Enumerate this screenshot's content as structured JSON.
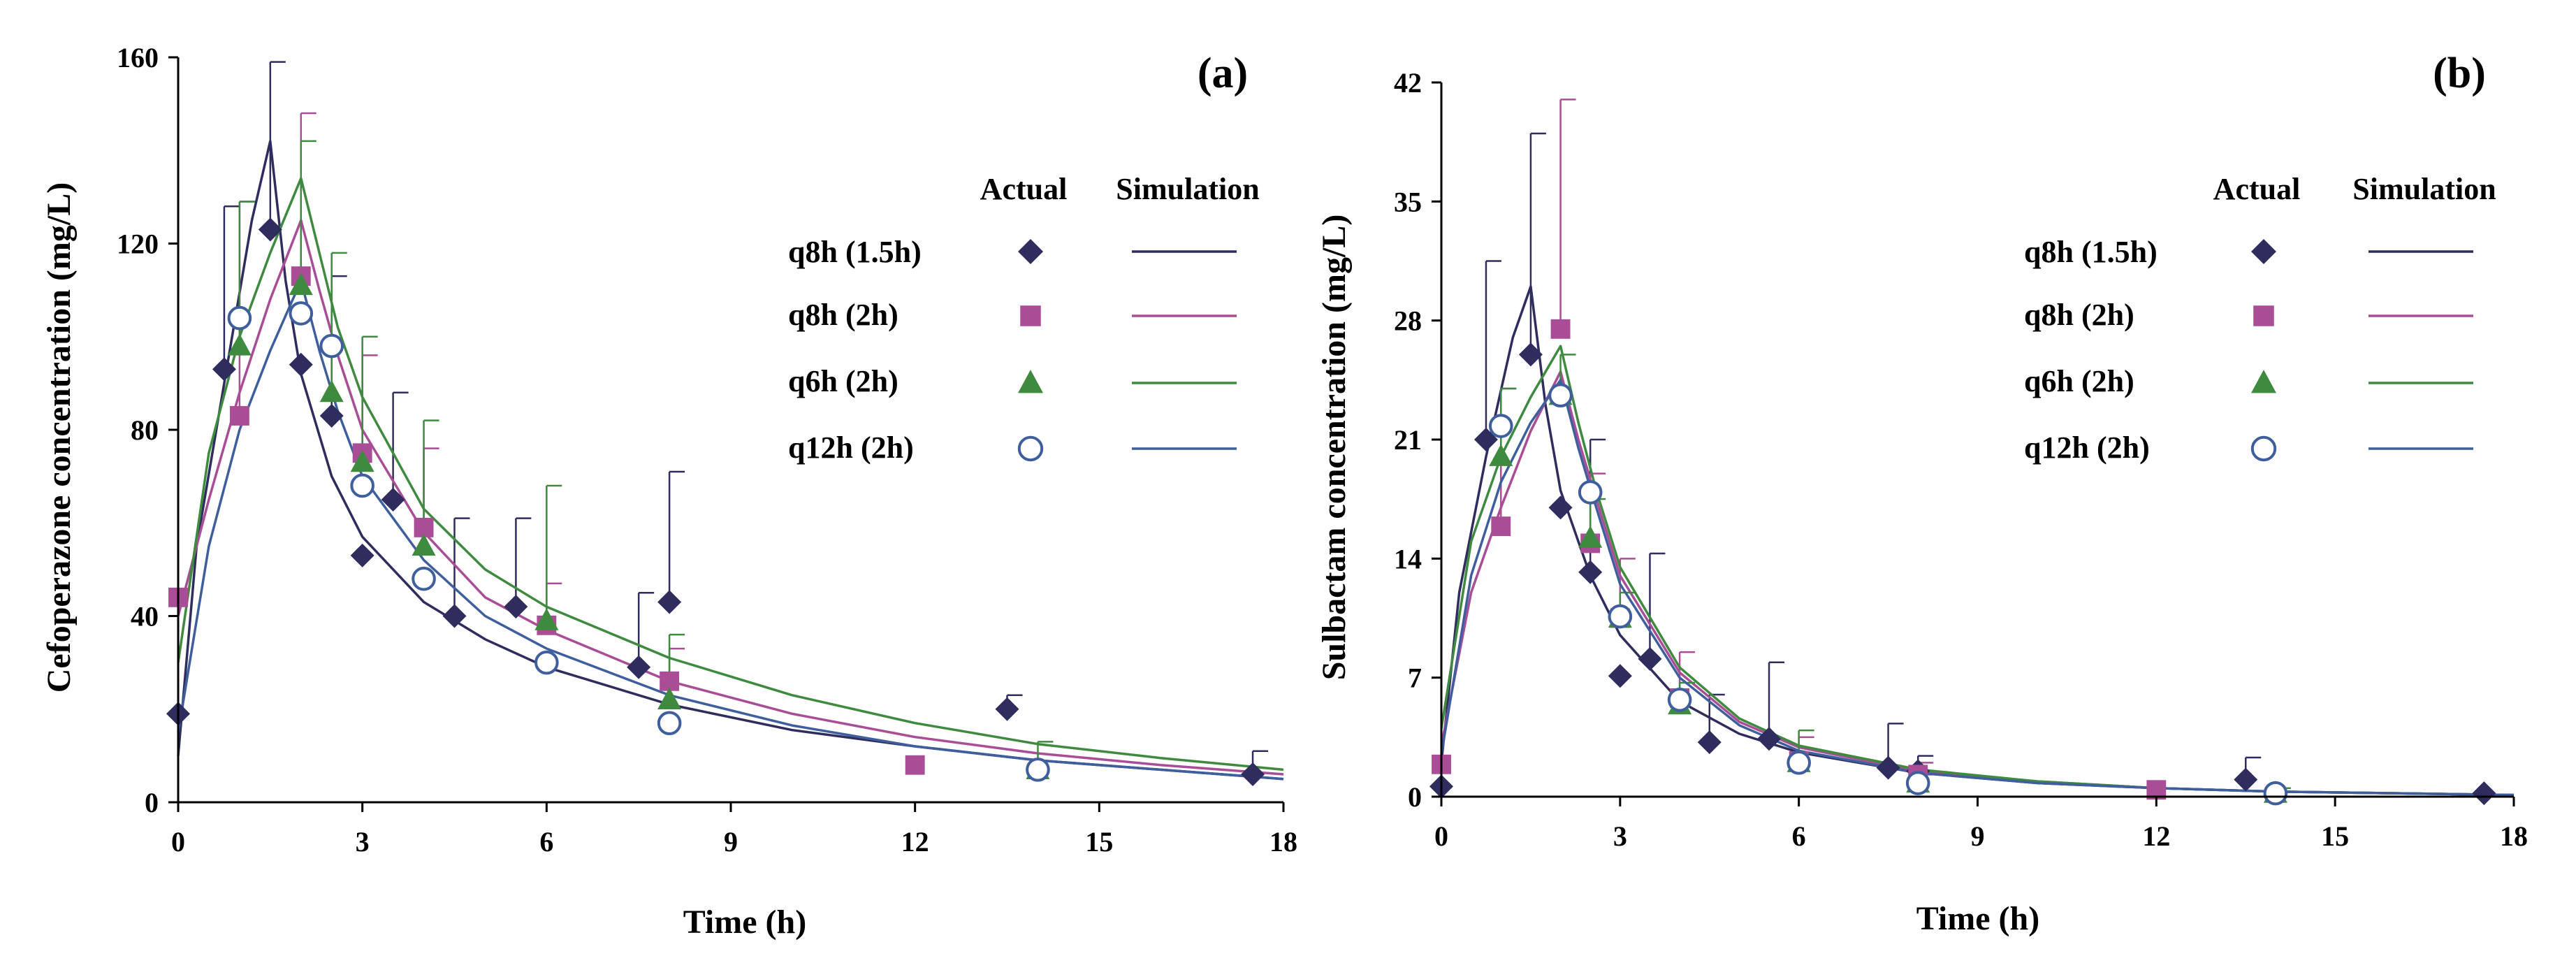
{
  "colors": {
    "q8h_1_5h": "#2E2D5E",
    "q8h_2h": "#A94E96",
    "q6h_2h": "#3E8A3E",
    "q12h_2h": "#3F5E9E"
  },
  "legend": {
    "actual": "Actual",
    "simulation": "Simulation",
    "series": [
      "q8h (1.5h)",
      "q8h (2h)",
      "q6h (2h)",
      "q12h (2h)"
    ],
    "markers": [
      "diamond",
      "square",
      "triangle",
      "circle-open"
    ]
  },
  "chart_data": [
    {
      "type": "scatter",
      "panel": "(a)",
      "xlabel": "Time (h)",
      "ylabel": "Cefoperazone concentration (mg/L)",
      "xlim": [
        0,
        18
      ],
      "ylim": [
        0,
        160
      ],
      "xticks": [
        "0",
        "3",
        "6",
        "9",
        "12",
        "15",
        "18"
      ],
      "yticks": [
        "0",
        "40",
        "80",
        "120",
        "160"
      ],
      "series": [
        {
          "name": "q8h (1.5h)",
          "actual": [
            [
              0,
              19,
              null
            ],
            [
              0.75,
              93,
              128
            ],
            [
              1.5,
              123,
              159
            ],
            [
              2,
              94,
              null
            ],
            [
              2.5,
              83,
              113
            ],
            [
              3,
              53,
              null
            ],
            [
              3.5,
              65,
              88
            ],
            [
              4.5,
              40,
              61
            ],
            [
              5.5,
              42,
              61
            ],
            [
              7.5,
              29,
              45
            ],
            [
              8,
              43,
              71
            ],
            [
              13.5,
              20,
              23
            ],
            [
              17.5,
              6,
              11
            ]
          ],
          "simulation": [
            [
              0,
              10
            ],
            [
              0.3,
              55
            ],
            [
              0.75,
              90
            ],
            [
              1.2,
              125
            ],
            [
              1.5,
              142
            ],
            [
              1.75,
              112
            ],
            [
              2,
              92
            ],
            [
              2.5,
              70
            ],
            [
              3,
              57
            ],
            [
              4,
              43
            ],
            [
              5,
              35
            ],
            [
              6,
              29
            ],
            [
              8,
              21
            ],
            [
              10,
              15.5
            ],
            [
              12,
              12
            ],
            [
              14,
              9
            ],
            [
              16,
              7
            ],
            [
              18,
              5
            ]
          ]
        },
        {
          "name": "q8h (2h)",
          "actual": [
            [
              0,
              44,
              null
            ],
            [
              1,
              83,
              129
            ],
            [
              2,
              113,
              148
            ],
            [
              3,
              75,
              96
            ],
            [
              4,
              59,
              76
            ],
            [
              6,
              38,
              47
            ],
            [
              8,
              26,
              33
            ],
            [
              12,
              8,
              null
            ]
          ],
          "simulation": [
            [
              0,
              40
            ],
            [
              0.5,
              65
            ],
            [
              1,
              88
            ],
            [
              1.5,
              108
            ],
            [
              2,
              125
            ],
            [
              2.3,
              110
            ],
            [
              2.6,
              96
            ],
            [
              3,
              80
            ],
            [
              4,
              58
            ],
            [
              5,
              44
            ],
            [
              6,
              37
            ],
            [
              8,
              26
            ],
            [
              10,
              19
            ],
            [
              12,
              14
            ],
            [
              14,
              10.5
            ],
            [
              16,
              8
            ],
            [
              18,
              6
            ]
          ]
        },
        {
          "name": "q6h (2h)",
          "actual": [
            [
              1,
              98,
              129
            ],
            [
              2,
              111,
              142
            ],
            [
              2.5,
              88,
              118
            ],
            [
              3,
              73,
              100
            ],
            [
              4,
              55,
              82
            ],
            [
              6,
              39,
              68
            ],
            [
              8,
              22,
              36
            ],
            [
              14,
              7,
              13
            ]
          ],
          "simulation": [
            [
              0,
              30
            ],
            [
              0.5,
              75
            ],
            [
              1,
              100
            ],
            [
              1.5,
              118
            ],
            [
              2,
              134
            ],
            [
              2.3,
              118
            ],
            [
              2.6,
              102
            ],
            [
              3,
              87
            ],
            [
              4,
              63
            ],
            [
              5,
              50
            ],
            [
              6,
              42
            ],
            [
              8,
              31
            ],
            [
              10,
              23
            ],
            [
              12,
              17
            ],
            [
              14,
              12.5
            ],
            [
              16,
              9.5
            ],
            [
              18,
              7
            ]
          ]
        },
        {
          "name": "q12h (2h)",
          "actual": [
            [
              1,
              104,
              null
            ],
            [
              2,
              105,
              null
            ],
            [
              2.5,
              98,
              null
            ],
            [
              3,
              68,
              null
            ],
            [
              4,
              48,
              null
            ],
            [
              6,
              30,
              null
            ],
            [
              8,
              17,
              null
            ],
            [
              14,
              7,
              null
            ]
          ],
          "simulation": [
            [
              0,
              15
            ],
            [
              0.5,
              55
            ],
            [
              1,
              80
            ],
            [
              1.5,
              97
            ],
            [
              2,
              112
            ],
            [
              2.3,
              97
            ],
            [
              2.6,
              84
            ],
            [
              3,
              70
            ],
            [
              4,
              52
            ],
            [
              5,
              40
            ],
            [
              6,
              33
            ],
            [
              8,
              23
            ],
            [
              10,
              16.5
            ],
            [
              12,
              12
            ],
            [
              14,
              9
            ],
            [
              16,
              7
            ],
            [
              18,
              5
            ]
          ]
        }
      ]
    },
    {
      "type": "scatter",
      "panel": "(b)",
      "xlabel": "Time (h)",
      "ylabel": "Sulbactam concentration (mg/L)",
      "xlim": [
        0,
        18
      ],
      "ylim": [
        0,
        42
      ],
      "xticks": [
        "0",
        "3",
        "6",
        "9",
        "12",
        "15",
        "18"
      ],
      "yticks": [
        "0",
        "7",
        "14",
        "21",
        "28",
        "35",
        "42"
      ],
      "series": [
        {
          "name": "q8h (1.5h)",
          "actual": [
            [
              0,
              0.6,
              null
            ],
            [
              0.75,
              21,
              31.5
            ],
            [
              1.5,
              26,
              39
            ],
            [
              2,
              17,
              null
            ],
            [
              2.5,
              13.2,
              21
            ],
            [
              3,
              7.1,
              null
            ],
            [
              3.5,
              8.1,
              14.3
            ],
            [
              4.5,
              3.2,
              6
            ],
            [
              5.5,
              3.4,
              7.9
            ],
            [
              7.5,
              1.7,
              4.3
            ],
            [
              8,
              1.5,
              2.4
            ],
            [
              13.5,
              1,
              2.3
            ],
            [
              17.5,
              0.2,
              null
            ]
          ],
          "simulation": [
            [
              0,
              2
            ],
            [
              0.3,
              12
            ],
            [
              0.75,
              20
            ],
            [
              1.2,
              27
            ],
            [
              1.5,
              30
            ],
            [
              1.75,
              23
            ],
            [
              2,
              18
            ],
            [
              2.5,
              13
            ],
            [
              3,
              9.5
            ],
            [
              4,
              5.6
            ],
            [
              5,
              3.7
            ],
            [
              6,
              2.6
            ],
            [
              8,
              1.4
            ],
            [
              10,
              0.8
            ],
            [
              12,
              0.5
            ],
            [
              14,
              0.3
            ],
            [
              16,
              0.2
            ],
            [
              18,
              0.1
            ]
          ]
        },
        {
          "name": "q8h (2h)",
          "actual": [
            [
              0,
              1.9,
              null
            ],
            [
              1,
              15.9,
              24
            ],
            [
              2,
              27.5,
              41
            ],
            [
              2.5,
              14.9,
              19
            ],
            [
              3,
              10.5,
              14
            ],
            [
              4,
              5.8,
              8.5
            ],
            [
              6,
              2.1,
              3.5
            ],
            [
              8,
              1.3,
              2
            ],
            [
              12,
              0.4,
              null
            ]
          ],
          "simulation": [
            [
              0,
              3
            ],
            [
              0.5,
              12
            ],
            [
              1,
              17
            ],
            [
              1.5,
              21.5
            ],
            [
              2,
              25
            ],
            [
              2.3,
              21
            ],
            [
              2.6,
              17.5
            ],
            [
              3,
              13
            ],
            [
              4,
              7.3
            ],
            [
              5,
              4.4
            ],
            [
              6,
              2.9
            ],
            [
              8,
              1.5
            ],
            [
              10,
              0.9
            ],
            [
              12,
              0.5
            ],
            [
              14,
              0.3
            ],
            [
              16,
              0.2
            ],
            [
              18,
              0.1
            ]
          ]
        },
        {
          "name": "q6h (2h)",
          "actual": [
            [
              1,
              20,
              24
            ],
            [
              2,
              23.6,
              26
            ],
            [
              2.5,
              15.2,
              17.5
            ],
            [
              3,
              10.5,
              12
            ],
            [
              4,
              5.4,
              6.7
            ],
            [
              6,
              2,
              3.9
            ],
            [
              8,
              0.8,
              1.3
            ],
            [
              14,
              0.2,
              0.5
            ]
          ],
          "simulation": [
            [
              0,
              4
            ],
            [
              0.5,
              15
            ],
            [
              1,
              20
            ],
            [
              1.5,
              23.5
            ],
            [
              2,
              26.5
            ],
            [
              2.3,
              22
            ],
            [
              2.6,
              18
            ],
            [
              3,
              13.5
            ],
            [
              4,
              7.6
            ],
            [
              5,
              4.6
            ],
            [
              6,
              3
            ],
            [
              8,
              1.6
            ],
            [
              10,
              0.9
            ],
            [
              12,
              0.5
            ],
            [
              14,
              0.3
            ],
            [
              16,
              0.2
            ],
            [
              18,
              0.1
            ]
          ]
        },
        {
          "name": "q12h (2h)",
          "actual": [
            [
              1,
              21.8,
              null
            ],
            [
              2,
              23.6,
              null
            ],
            [
              2.5,
              17.9,
              null
            ],
            [
              3,
              10.6,
              null
            ],
            [
              4,
              5.7,
              null
            ],
            [
              6,
              2,
              null
            ],
            [
              8,
              0.8,
              null
            ],
            [
              14,
              0.2,
              null
            ]
          ],
          "simulation": [
            [
              0,
              2.5
            ],
            [
              0.5,
              13
            ],
            [
              1,
              18.5
            ],
            [
              1.5,
              22
            ],
            [
              2,
              24.5
            ],
            [
              2.3,
              20.5
            ],
            [
              2.6,
              17
            ],
            [
              3,
              12.5
            ],
            [
              4,
              7
            ],
            [
              5,
              4.2
            ],
            [
              6,
              2.7
            ],
            [
              8,
              1.4
            ],
            [
              10,
              0.8
            ],
            [
              12,
              0.5
            ],
            [
              14,
              0.3
            ],
            [
              16,
              0.2
            ],
            [
              18,
              0.1
            ]
          ]
        }
      ]
    }
  ]
}
